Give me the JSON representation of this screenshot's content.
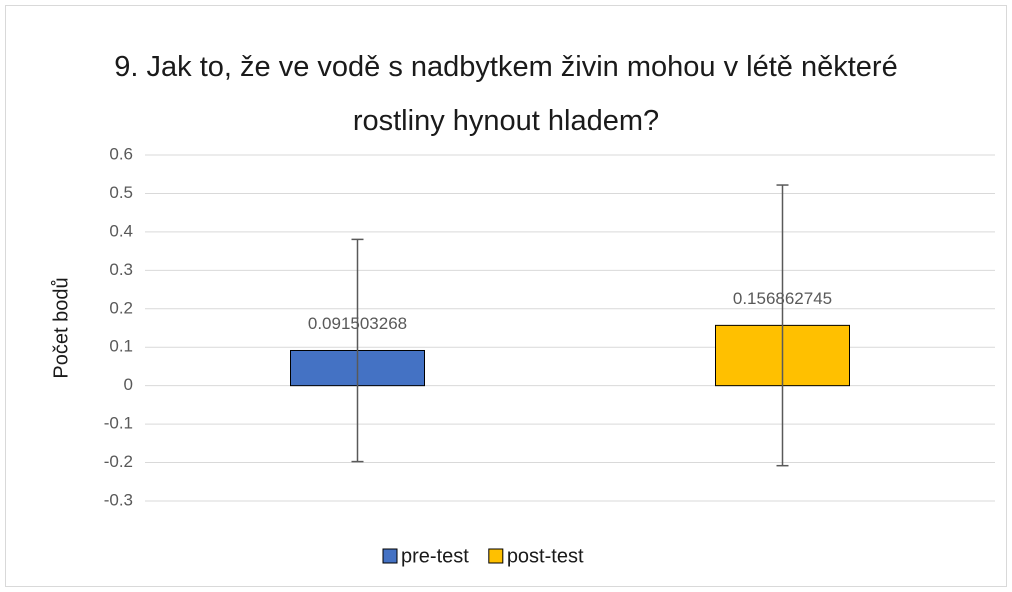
{
  "chart_data": {
    "type": "bar",
    "title": "9. Jak to, že ve vodě s nadbytkem živin mohou v létě některé rostliny hynout hladem?",
    "y_label": "Počet bodů",
    "categories": [
      null
    ],
    "series": [
      {
        "name": "pre-test",
        "color": "#4472c4",
        "values": [
          0.091503268
        ],
        "errors": [
          0.289
        ]
      },
      {
        "name": "post-test",
        "color": "#ffc000",
        "values": [
          0.156862745
        ],
        "errors": [
          0.365
        ]
      }
    ],
    "ylim": [
      -0.3,
      0.6
    ],
    "yticks": [
      -0.3,
      -0.2,
      -0.1,
      0,
      0.1,
      0.2,
      0.3,
      0.4,
      0.5,
      0.6
    ],
    "grid": true,
    "legend": "bottom"
  }
}
